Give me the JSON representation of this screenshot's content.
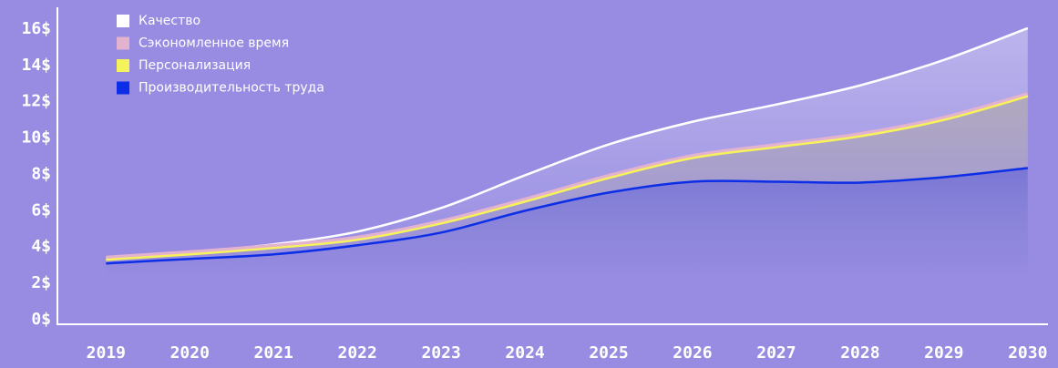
{
  "chart_data": {
    "type": "area",
    "x": [
      2019,
      2020,
      2021,
      2022,
      2023,
      2024,
      2025,
      2026,
      2027,
      2028,
      2029,
      2030
    ],
    "xlim": [
      2018.42,
      2030.22
    ],
    "xticks": [
      2019,
      2020,
      2021,
      2022,
      2023,
      2024,
      2025,
      2026,
      2027,
      2028,
      2029,
      2030
    ],
    "ylim": [
      -0.25,
      17.2
    ],
    "yticks": [
      {
        "value": 0,
        "label": "0$"
      },
      {
        "value": 2,
        "label": "2$"
      },
      {
        "value": 4,
        "label": "4$"
      },
      {
        "value": 6,
        "label": "6$"
      },
      {
        "value": 8,
        "label": "8$"
      },
      {
        "value": 10,
        "label": "10$"
      },
      {
        "value": 12,
        "label": "12$"
      },
      {
        "value": 14,
        "label": "14$"
      },
      {
        "value": 16,
        "label": "16$"
      }
    ],
    "legend": "top-left",
    "series": [
      {
        "name": "Качество",
        "color": "#ffffff",
        "values": [
          3.4,
          3.7,
          4.15,
          4.85,
          6.15,
          7.95,
          9.65,
          10.9,
          11.85,
          12.9,
          14.3,
          16.05
        ]
      },
      {
        "name": "Сэкономленное время",
        "color": "#e3b2cf",
        "values": [
          3.4,
          3.7,
          4.05,
          4.5,
          5.4,
          6.6,
          7.9,
          9.0,
          9.6,
          10.2,
          11.1,
          12.4
        ]
      },
      {
        "name": "Персонализация",
        "color": "#f6f25c",
        "values": [
          3.3,
          3.6,
          3.95,
          4.4,
          5.3,
          6.5,
          7.8,
          8.9,
          9.5,
          10.1,
          11.0,
          12.3
        ]
      },
      {
        "name": "Производительность труда",
        "color": "#0b2ee6",
        "values": [
          3.1,
          3.35,
          3.6,
          4.1,
          4.8,
          6.0,
          7.0,
          7.6,
          7.6,
          7.55,
          7.85,
          8.35
        ]
      }
    ]
  }
}
